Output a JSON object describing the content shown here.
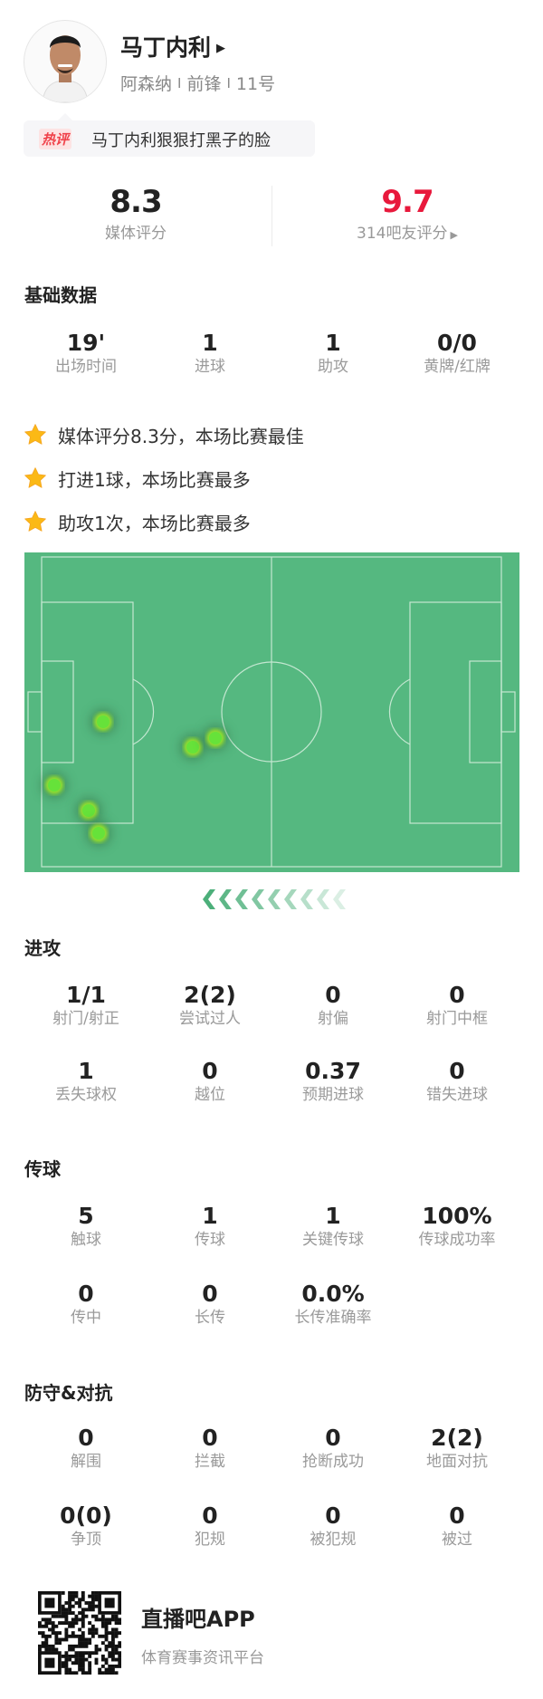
{
  "player": {
    "name": "马丁内利",
    "team": "阿森纳",
    "position": "前锋",
    "number": "11号",
    "separator": "I"
  },
  "hot_comment": {
    "tag": "热评",
    "text": "马丁内利狠狠打黑子的脸"
  },
  "ratings": {
    "media": {
      "value": "8.3",
      "label": "媒体评分"
    },
    "fans": {
      "value": "9.7",
      "label": "314吧友评分",
      "color": "#e8193c"
    }
  },
  "basic": {
    "title": "基础数据",
    "stats": [
      {
        "value": "19'",
        "label": "出场时间"
      },
      {
        "value": "1",
        "label": "进球"
      },
      {
        "value": "1",
        "label": "助攻"
      },
      {
        "value": "0/0",
        "label": "黄牌/红牌"
      }
    ]
  },
  "highlights": [
    "媒体评分8.3分，本场比赛最佳",
    "打进1球，本场比赛最多",
    "助攻1次，本场比赛最多"
  ],
  "heatmap": {
    "pitch_color": "#55b880",
    "attack_direction": "left"
  },
  "attack": {
    "title": "进攻",
    "stats": [
      {
        "value": "1/1",
        "label": "射门/射正"
      },
      {
        "value": "2(2)",
        "label": "尝试过人"
      },
      {
        "value": "0",
        "label": "射偏"
      },
      {
        "value": "0",
        "label": "射门中框"
      },
      {
        "value": "1",
        "label": "丢失球权"
      },
      {
        "value": "0",
        "label": "越位"
      },
      {
        "value": "0.37",
        "label": "预期进球"
      },
      {
        "value": "0",
        "label": "错失进球"
      }
    ]
  },
  "passing": {
    "title": "传球",
    "stats": [
      {
        "value": "5",
        "label": "触球"
      },
      {
        "value": "1",
        "label": "传球"
      },
      {
        "value": "1",
        "label": "关键传球"
      },
      {
        "value": "100%",
        "label": "传球成功率"
      },
      {
        "value": "0",
        "label": "传中"
      },
      {
        "value": "0",
        "label": "长传"
      },
      {
        "value": "0.0%",
        "label": "长传准确率"
      }
    ]
  },
  "defense": {
    "title": "防守&对抗",
    "stats": [
      {
        "value": "0",
        "label": "解围"
      },
      {
        "value": "0",
        "label": "拦截"
      },
      {
        "value": "0",
        "label": "抢断成功"
      },
      {
        "value": "2(2)",
        "label": "地面对抗"
      },
      {
        "value": "0(0)",
        "label": "争顶"
      },
      {
        "value": "0",
        "label": "犯规"
      },
      {
        "value": "0",
        "label": "被犯规"
      },
      {
        "value": "0",
        "label": "被过"
      }
    ]
  },
  "footer": {
    "app_name": "直播吧APP",
    "tagline": "体育赛事资讯平台"
  }
}
